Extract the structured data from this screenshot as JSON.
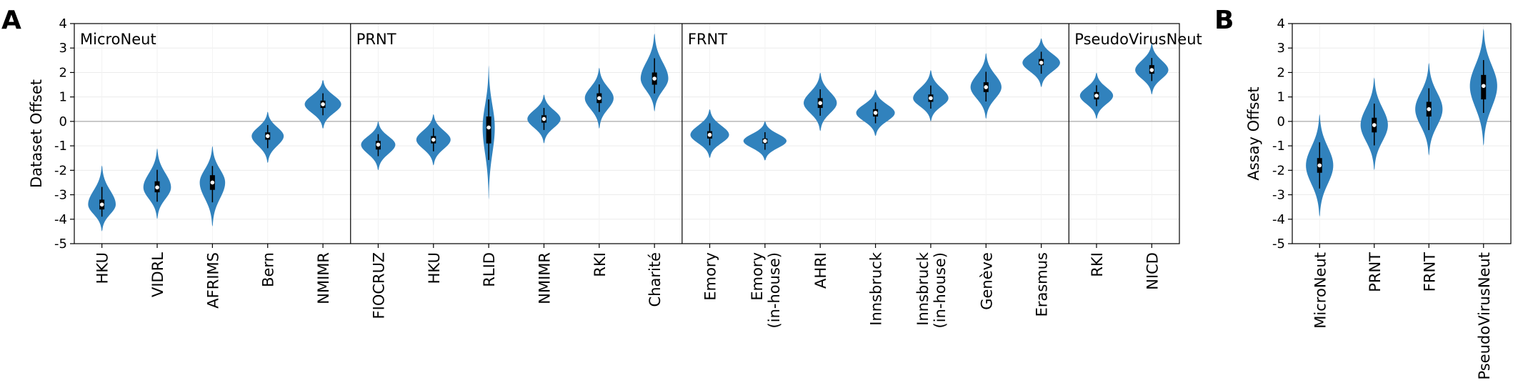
{
  "panels": [
    {
      "letter": "A",
      "ylabel": "Dataset Offset",
      "yticks": [
        "-5",
        "-4",
        "-3",
        "-2",
        "-1",
        "0",
        "1",
        "2",
        "3",
        "4"
      ],
      "groups": [
        {
          "label": "MicroNeut",
          "count": 5
        },
        {
          "label": "PRNT",
          "count": 6
        },
        {
          "label": "FRNT",
          "count": 7
        },
        {
          "label": "PseudoVirusNeut",
          "count": 2
        }
      ],
      "xticks": [
        {
          "l1": "HKU"
        },
        {
          "l1": "VIDRL"
        },
        {
          "l1": "AFRIMS"
        },
        {
          "l1": "Bern"
        },
        {
          "l1": "NMIMR"
        },
        {
          "l1": "FIOCRUZ"
        },
        {
          "l1": "HKU"
        },
        {
          "l1": "RLID"
        },
        {
          "l1": "NMIMR"
        },
        {
          "l1": "RKI"
        },
        {
          "l1": "Charité"
        },
        {
          "l1": "Emory"
        },
        {
          "l1": "Emory",
          "l2": "(in-house)"
        },
        {
          "l1": "AHRI"
        },
        {
          "l1": "Innsbruck"
        },
        {
          "l1": "Innsbruck",
          "l2": "(in-house)"
        },
        {
          "l1": "Genève"
        },
        {
          "l1": "Erasmus"
        },
        {
          "l1": "RKI"
        },
        {
          "l1": "NICD"
        }
      ]
    },
    {
      "letter": "B",
      "ylabel": "Assay Offset",
      "yticks": [
        "-5",
        "-4",
        "-3",
        "-2",
        "-1",
        "0",
        "1",
        "2",
        "3",
        "4"
      ],
      "xticks": [
        {
          "l1": "MicroNeut"
        },
        {
          "l1": "PRNT"
        },
        {
          "l1": "FRNT"
        },
        {
          "l1": "PseudoVirusNeut"
        }
      ]
    }
  ],
  "chart_data": [
    {
      "type": "violin",
      "panel": "A",
      "ylabel": "Dataset Offset",
      "ylim": [
        -5,
        4
      ],
      "zero_line": 0,
      "color": "#3182bd",
      "groups": [
        "MicroNeut",
        "PRNT",
        "FRNT",
        "PseudoVirusNeut"
      ],
      "series": [
        {
          "group": "MicroNeut",
          "category": "HKU",
          "median": -3.4,
          "q1": -3.6,
          "q3": -3.2,
          "min": -4.5,
          "max": -1.8,
          "width": 0.5
        },
        {
          "group": "MicroNeut",
          "category": "VIDRL",
          "median": -2.7,
          "q1": -2.9,
          "q3": -2.45,
          "min": -4.0,
          "max": -1.1,
          "width": 0.5
        },
        {
          "group": "MicroNeut",
          "category": "AFRIMS",
          "median": -2.5,
          "q1": -2.8,
          "q3": -2.2,
          "min": -4.3,
          "max": -1.0,
          "width": 0.46
        },
        {
          "group": "MicroNeut",
          "category": "Bern",
          "median": -0.6,
          "q1": -0.75,
          "q3": -0.45,
          "min": -1.7,
          "max": 0.4,
          "width": 0.58
        },
        {
          "group": "MicroNeut",
          "category": "NMIMR",
          "median": 0.7,
          "q1": 0.55,
          "q3": 0.85,
          "min": -0.3,
          "max": 1.7,
          "width": 0.66
        },
        {
          "group": "PRNT",
          "category": "FIOCRUZ",
          "median": -0.95,
          "q1": -1.15,
          "q3": -0.8,
          "min": -2.0,
          "max": 0.0,
          "width": 0.62
        },
        {
          "group": "PRNT",
          "category": "HKU",
          "median": -0.75,
          "q1": -0.9,
          "q3": -0.6,
          "min": -1.8,
          "max": 0.3,
          "width": 0.62
        },
        {
          "group": "PRNT",
          "category": "RLID",
          "median": -0.25,
          "q1": -0.9,
          "q3": 0.2,
          "min": -3.2,
          "max": 2.3,
          "width": 0.22
        },
        {
          "group": "PRNT",
          "category": "NMIMR",
          "median": 0.1,
          "q1": -0.05,
          "q3": 0.25,
          "min": -0.9,
          "max": 1.1,
          "width": 0.6
        },
        {
          "group": "PRNT",
          "category": "RKI",
          "median": 0.95,
          "q1": 0.75,
          "q3": 1.15,
          "min": -0.3,
          "max": 2.2,
          "width": 0.52
        },
        {
          "group": "PRNT",
          "category": "Charité",
          "median": 1.75,
          "q1": 1.5,
          "q3": 2.0,
          "min": 0.4,
          "max": 3.6,
          "width": 0.5
        },
        {
          "group": "FRNT",
          "category": "Emory",
          "median": -0.55,
          "q1": -0.7,
          "q3": -0.4,
          "min": -1.5,
          "max": 0.5,
          "width": 0.7
        },
        {
          "group": "FRNT",
          "category": "Emory (in-house)",
          "median": -0.8,
          "q1": -0.9,
          "q3": -0.7,
          "min": -1.6,
          "max": 0.0,
          "width": 0.78
        },
        {
          "group": "FRNT",
          "category": "AHRI",
          "median": 0.75,
          "q1": 0.55,
          "q3": 0.95,
          "min": -0.4,
          "max": 2.0,
          "width": 0.6
        },
        {
          "group": "FRNT",
          "category": "Innsbruck",
          "median": 0.35,
          "q1": 0.2,
          "q3": 0.5,
          "min": -0.6,
          "max": 1.3,
          "width": 0.7
        },
        {
          "group": "FRNT",
          "category": "Innsbruck (in-house)",
          "median": 0.95,
          "q1": 0.8,
          "q3": 1.1,
          "min": 0.0,
          "max": 2.1,
          "width": 0.64
        },
        {
          "group": "FRNT",
          "category": "Genève",
          "median": 1.4,
          "q1": 1.2,
          "q3": 1.6,
          "min": 0.1,
          "max": 2.8,
          "width": 0.56
        },
        {
          "group": "FRNT",
          "category": "Erasmus",
          "median": 2.4,
          "q1": 2.3,
          "q3": 2.55,
          "min": 1.4,
          "max": 3.4,
          "width": 0.68
        },
        {
          "group": "PseudoVirusNeut",
          "category": "RKI",
          "median": 1.05,
          "q1": 0.9,
          "q3": 1.2,
          "min": 0.1,
          "max": 2.0,
          "width": 0.6
        },
        {
          "group": "PseudoVirusNeut",
          "category": "NICD",
          "median": 2.1,
          "q1": 1.95,
          "q3": 2.3,
          "min": 1.1,
          "max": 3.2,
          "width": 0.6
        }
      ]
    },
    {
      "type": "violin",
      "panel": "B",
      "ylabel": "Assay Offset",
      "ylim": [
        -5,
        4
      ],
      "zero_line": 0,
      "color": "#3182bd",
      "series": [
        {
          "category": "MicroNeut",
          "median": -1.8,
          "q1": -2.1,
          "q3": -1.5,
          "min": -3.9,
          "max": 0.3,
          "width": 0.5
        },
        {
          "category": "PRNT",
          "median": -0.15,
          "q1": -0.45,
          "q3": 0.15,
          "min": -2.0,
          "max": 1.8,
          "width": 0.5
        },
        {
          "category": "FRNT",
          "median": 0.5,
          "q1": 0.2,
          "q3": 0.8,
          "min": -1.4,
          "max": 2.4,
          "width": 0.5
        },
        {
          "category": "PseudoVirusNeut",
          "median": 1.45,
          "q1": 0.9,
          "q3": 1.9,
          "min": -1.0,
          "max": 3.8,
          "width": 0.5
        }
      ]
    }
  ]
}
